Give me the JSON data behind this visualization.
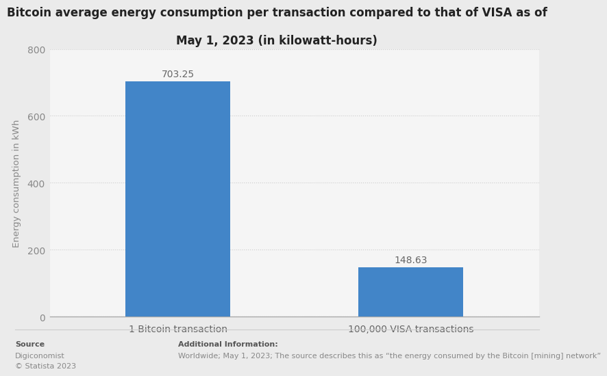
{
  "title_line1": "Bitcoin average energy consumption per transaction compared to that of VISA as of",
  "title_line2": "May 1, 2023 (in kilowatt-hours)",
  "categories": [
    "1 Bitcoin transaction",
    "100,000 VISA transactions"
  ],
  "values": [
    703.25,
    148.63
  ],
  "bar_color": "#4285c8",
  "ylabel": "Energy consumption in kWh",
  "ylim": [
    0,
    800
  ],
  "yticks": [
    0,
    200,
    400,
    600,
    800
  ],
  "background_color": "#ebebeb",
  "plot_bg_color": "#f5f5f5",
  "title_fontsize": 12,
  "label_fontsize": 9.5,
  "tick_fontsize": 10,
  "value_label_color": "#666666",
  "source_label": "Source",
  "source_text": "Digiconomist\n© Statista 2023",
  "additional_label": "Additional Information:",
  "additional_text": "Worldwide; May 1, 2023; The source describes this as “the energy consumed by the Bitcoin [mining] network”",
  "footer_fontsize": 8,
  "grid_color": "#cccccc",
  "grid_linestyle": "dotted"
}
